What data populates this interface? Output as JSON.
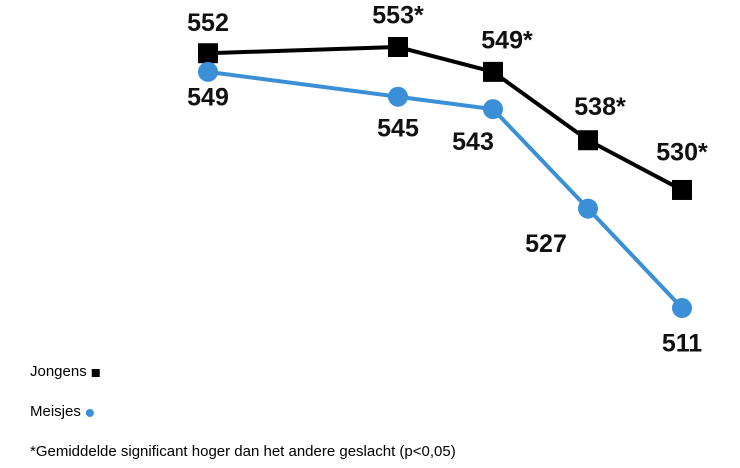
{
  "chart_data": {
    "type": "line",
    "categories": [
      null,
      null,
      null,
      null,
      null
    ],
    "series": [
      {
        "name": "Jongens",
        "color": "#000000",
        "marker": "square",
        "values": [
          552,
          553,
          549,
          538,
          530
        ],
        "value_labels": [
          "552",
          "553*",
          "549*",
          "538*",
          "530*"
        ]
      },
      {
        "name": "Meisjes",
        "color": "#3a8fd6",
        "marker": "circle",
        "values": [
          549,
          545,
          543,
          527,
          511
        ],
        "value_labels": [
          "549",
          "545",
          "543",
          "527",
          "511"
        ]
      }
    ],
    "ylim": [
      500,
      560
    ],
    "note": "*Gemiddelde significant hoger dan het andere geslacht (p<0,05)"
  }
}
